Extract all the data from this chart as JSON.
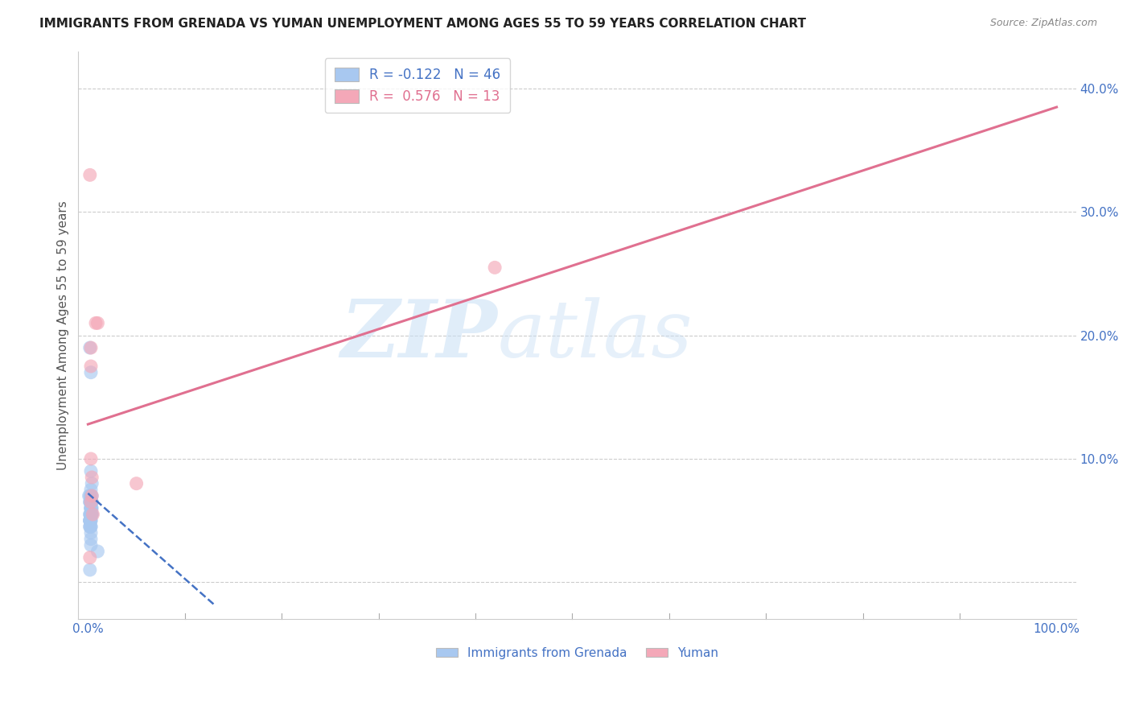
{
  "title": "IMMIGRANTS FROM GRENADA VS YUMAN UNEMPLOYMENT AMONG AGES 55 TO 59 YEARS CORRELATION CHART",
  "source": "Source: ZipAtlas.com",
  "ylabel": "Unemployment Among Ages 55 to 59 years",
  "watermark_zip": "ZIP",
  "watermark_atlas": "atlas",
  "legend_blue_r": "R = -0.122",
  "legend_blue_n": "N = 46",
  "legend_pink_r": "R =  0.576",
  "legend_pink_n": "N = 13",
  "legend_blue_label": "Immigrants from Grenada",
  "legend_pink_label": "Yuman",
  "yticks": [
    0.0,
    0.1,
    0.2,
    0.3,
    0.4
  ],
  "xticks": [
    0.0,
    0.1,
    0.2,
    0.3,
    0.4,
    0.5,
    0.6,
    0.7,
    0.8,
    0.9,
    1.0
  ],
  "xlim": [
    -0.01,
    1.02
  ],
  "ylim": [
    -0.03,
    0.43
  ],
  "blue_color": "#A8C8F0",
  "pink_color": "#F4A8B8",
  "blue_line_color": "#4472C4",
  "pink_line_color": "#E07090",
  "grid_color": "#CCCCCC",
  "title_color": "#222222",
  "axis_tick_color": "#4472C4",
  "ylabel_color": "#555555",
  "blue_points_x": [
    0.002,
    0.003,
    0.003,
    0.004,
    0.001,
    0.002,
    0.003,
    0.002,
    0.003,
    0.004,
    0.003,
    0.003,
    0.004,
    0.002,
    0.002,
    0.003,
    0.004,
    0.003,
    0.004,
    0.003,
    0.002,
    0.003,
    0.003,
    0.002,
    0.003,
    0.002,
    0.004,
    0.003,
    0.003,
    0.004,
    0.002,
    0.003,
    0.003,
    0.003,
    0.003,
    0.01,
    0.003,
    0.002,
    0.003,
    0.003,
    0.003,
    0.002,
    0.002,
    0.003,
    0.002,
    0.003
  ],
  "blue_points_y": [
    0.19,
    0.17,
    0.065,
    0.065,
    0.07,
    0.065,
    0.07,
    0.07,
    0.075,
    0.08,
    0.06,
    0.065,
    0.07,
    0.065,
    0.055,
    0.06,
    0.065,
    0.055,
    0.055,
    0.06,
    0.045,
    0.05,
    0.055,
    0.045,
    0.055,
    0.05,
    0.055,
    0.055,
    0.06,
    0.06,
    0.05,
    0.045,
    0.04,
    0.035,
    0.03,
    0.025,
    0.05,
    0.05,
    0.055,
    0.06,
    0.065,
    0.055,
    0.05,
    0.045,
    0.01,
    0.09
  ],
  "pink_points_x": [
    0.002,
    0.008,
    0.01,
    0.003,
    0.003,
    0.003,
    0.004,
    0.004,
    0.003,
    0.005,
    0.002,
    0.05,
    0.42
  ],
  "pink_points_y": [
    0.33,
    0.21,
    0.21,
    0.19,
    0.175,
    0.1,
    0.085,
    0.07,
    0.065,
    0.055,
    0.02,
    0.08,
    0.255
  ],
  "blue_line_x": [
    0.0,
    0.13
  ],
  "blue_line_y": [
    0.072,
    -0.018
  ],
  "pink_line_x": [
    0.0,
    1.0
  ],
  "pink_line_y": [
    0.128,
    0.385
  ]
}
